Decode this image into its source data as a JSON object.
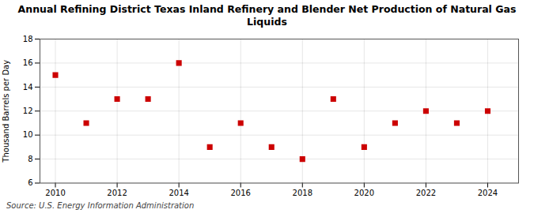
{
  "chart_data": {
    "type": "scatter",
    "title": "Annual Refining District Texas Inland Refinery and Blender Net Production of Natural Gas\nLiquids",
    "y_label": "Thousand Barrels per Day",
    "source": "Source: U.S. Energy Information Administration",
    "x": [
      2010,
      2011,
      2012,
      2013,
      2014,
      2015,
      2016,
      2017,
      2018,
      2019,
      2020,
      2021,
      2022,
      2023,
      2024
    ],
    "values": [
      15,
      11,
      13,
      13,
      16,
      9,
      11,
      9,
      8,
      13,
      9,
      11,
      12,
      11,
      12
    ],
    "color": "#cc0000",
    "marker": "square",
    "xlim": [
      2009.5,
      2025.0
    ],
    "xticks": [
      2010,
      2012,
      2014,
      2016,
      2018,
      2020,
      2022,
      2024
    ],
    "ylim": [
      6,
      18
    ],
    "yticks": [
      6,
      8,
      10,
      12,
      14,
      16,
      18
    ],
    "grid": true
  }
}
